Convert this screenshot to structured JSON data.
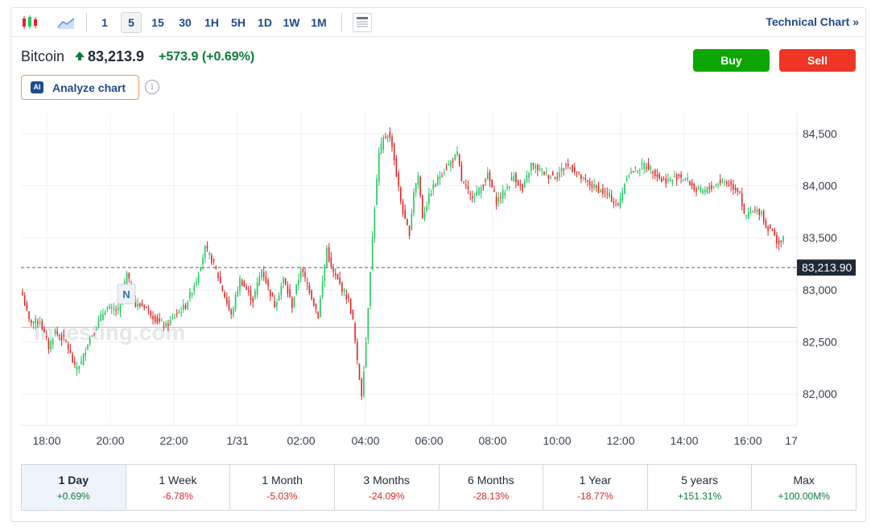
{
  "toolbar": {
    "intervals": [
      "1",
      "5",
      "15",
      "30",
      "1H",
      "5H",
      "1D",
      "1W",
      "1M"
    ],
    "active_interval": "5",
    "technical_chart_label": "Technical Chart »"
  },
  "header": {
    "name": "Bitcoin",
    "price": "83,213.9",
    "change": "+573.9",
    "change_pct": "(+0.69%)",
    "buy_label": "Buy",
    "sell_label": "Sell",
    "analyze_label": "Analyze chart",
    "ai_badge": "AI",
    "info_glyph": "i"
  },
  "colors": {
    "up": "#22c55e",
    "down": "#dc2626",
    "accent": "#1e4a8c"
  },
  "chart_data": {
    "type": "candlestick",
    "last_price_label": "83,213.90",
    "last_price": 83213.9,
    "previous_close": 82640,
    "ylim": [
      81700,
      84700
    ],
    "y_ticks": [
      82000,
      82500,
      83000,
      83500,
      84000,
      84500
    ],
    "y_tick_labels": [
      "82,000",
      "82,500",
      "83,000",
      "83,500",
      "84,000",
      "84,500"
    ],
    "x_tick_labels": [
      "18:00",
      "20:00",
      "22:00",
      "1/31",
      "02:00",
      "04:00",
      "06:00",
      "08:00",
      "10:00",
      "12:00",
      "14:00",
      "16:00",
      "17"
    ],
    "watermark": "Investing.com",
    "marker": "N",
    "grid": true,
    "anchors": [
      [
        0,
        82950
      ],
      [
        3,
        82700
      ],
      [
        8,
        82700
      ],
      [
        12,
        82450
      ],
      [
        15,
        82600
      ],
      [
        20,
        82500
      ],
      [
        24,
        82250
      ],
      [
        27,
        82300
      ],
      [
        30,
        82500
      ],
      [
        34,
        82650
      ],
      [
        38,
        82820
      ],
      [
        44,
        82800
      ],
      [
        48,
        83150
      ],
      [
        52,
        82850
      ],
      [
        56,
        82850
      ],
      [
        62,
        82700
      ],
      [
        66,
        82650
      ],
      [
        70,
        82750
      ],
      [
        75,
        82850
      ],
      [
        80,
        83100
      ],
      [
        84,
        83400
      ],
      [
        88,
        83250
      ],
      [
        92,
        83000
      ],
      [
        96,
        82750
      ],
      [
        100,
        83100
      ],
      [
        106,
        82900
      ],
      [
        110,
        83200
      ],
      [
        116,
        82850
      ],
      [
        120,
        83100
      ],
      [
        124,
        82850
      ],
      [
        128,
        83200
      ],
      [
        132,
        83000
      ],
      [
        136,
        82750
      ],
      [
        140,
        83400
      ],
      [
        142,
        83200
      ],
      [
        146,
        83050
      ],
      [
        150,
        82900
      ],
      [
        152,
        82700
      ],
      [
        154,
        82300
      ],
      [
        156,
        82000
      ],
      [
        158,
        82500
      ],
      [
        160,
        83200
      ],
      [
        162,
        83800
      ],
      [
        164,
        84300
      ],
      [
        166,
        84450
      ],
      [
        168,
        84500
      ],
      [
        170,
        84400
      ],
      [
        172,
        84100
      ],
      [
        174,
        83850
      ],
      [
        176,
        83650
      ],
      [
        178,
        83550
      ],
      [
        180,
        83950
      ],
      [
        182,
        84100
      ],
      [
        184,
        83700
      ],
      [
        188,
        83950
      ],
      [
        192,
        84100
      ],
      [
        196,
        84200
      ],
      [
        200,
        84300
      ],
      [
        202,
        84050
      ],
      [
        206,
        83900
      ],
      [
        210,
        83950
      ],
      [
        214,
        84100
      ],
      [
        218,
        83850
      ],
      [
        222,
        83950
      ],
      [
        226,
        84100
      ],
      [
        230,
        83950
      ],
      [
        234,
        84200
      ],
      [
        238,
        84150
      ],
      [
        242,
        84100
      ],
      [
        246,
        84100
      ],
      [
        250,
        84200
      ],
      [
        254,
        84150
      ],
      [
        258,
        84050
      ],
      [
        262,
        84000
      ],
      [
        266,
        83950
      ],
      [
        270,
        83900
      ],
      [
        274,
        83800
      ],
      [
        278,
        84100
      ],
      [
        282,
        84150
      ],
      [
        286,
        84200
      ],
      [
        290,
        84150
      ],
      [
        294,
        84050
      ],
      [
        298,
        84050
      ],
      [
        302,
        84100
      ],
      [
        306,
        84050
      ],
      [
        310,
        83950
      ],
      [
        314,
        83950
      ],
      [
        318,
        84000
      ],
      [
        322,
        84050
      ],
      [
        326,
        84000
      ],
      [
        330,
        83950
      ],
      [
        332,
        83700
      ],
      [
        336,
        83750
      ],
      [
        340,
        83750
      ],
      [
        342,
        83600
      ],
      [
        344,
        83600
      ],
      [
        346,
        83500
      ],
      [
        348,
        83450
      ],
      [
        350,
        83480
      ]
    ]
  },
  "ranges": [
    {
      "label": "1 Day",
      "value": "+0.69%",
      "trend": "pos"
    },
    {
      "label": "1 Week",
      "value": "-6.78%",
      "trend": "neg"
    },
    {
      "label": "1 Month",
      "value": "-5.03%",
      "trend": "neg"
    },
    {
      "label": "3 Months",
      "value": "-24.09%",
      "trend": "neg"
    },
    {
      "label": "6 Months",
      "value": "-28.13%",
      "trend": "neg"
    },
    {
      "label": "1 Year",
      "value": "-18.77%",
      "trend": "neg"
    },
    {
      "label": "5 years",
      "value": "+151.31%",
      "trend": "pos"
    },
    {
      "label": "Max",
      "value": "+100.00M%",
      "trend": "pos"
    }
  ]
}
